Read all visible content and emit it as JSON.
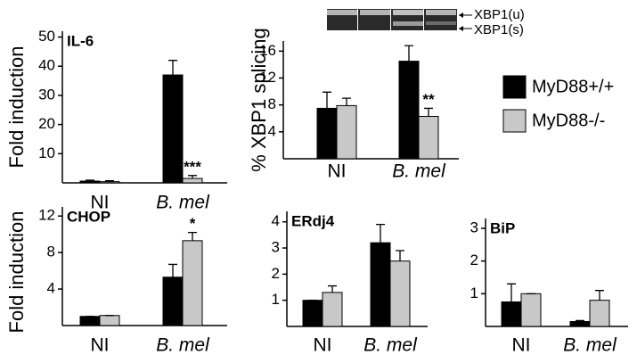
{
  "legend": [
    {
      "name": "MyD88+/+",
      "color": "#000000"
    },
    {
      "name": "MyD88-/-",
      "color": "#c8c8c8"
    }
  ],
  "gel": {
    "labels": [
      "XBP1(u)",
      "XBP1(s)"
    ]
  },
  "chart_data": [
    {
      "type": "bar",
      "title": "IL-6",
      "y_label": "Fold induction",
      "categories": [
        "NI",
        "B. mel"
      ],
      "series": [
        {
          "color": "#000000",
          "values": [
            0.6,
            37
          ],
          "errors": [
            0.3,
            5
          ]
        },
        {
          "color": "#c8c8c8",
          "values": [
            0.4,
            1.5
          ],
          "errors": [
            0.3,
            1
          ]
        }
      ],
      "annotations": [
        {
          "text": "***",
          "series": 1,
          "category": 1
        }
      ],
      "ylim": [
        0,
        52
      ],
      "yticks": [
        10,
        20,
        30,
        40,
        50
      ]
    },
    {
      "type": "bar",
      "y_label": "% XBP1 splicing",
      "categories": [
        "NI",
        "B. mel"
      ],
      "series": [
        {
          "color": "#000000",
          "values": [
            7.5,
            14.5
          ],
          "errors": [
            2.4,
            2.3
          ]
        },
        {
          "color": "#c8c8c8",
          "values": [
            7.9,
            6.3
          ],
          "errors": [
            1.1,
            1.2
          ]
        }
      ],
      "annotations": [
        {
          "text": "**",
          "series": 1,
          "category": 1
        }
      ],
      "ylim": [
        0,
        17.5
      ],
      "yticks": [
        4,
        8,
        12,
        16
      ]
    },
    {
      "type": "bar",
      "title": "CHOP",
      "y_label": "Fold induction",
      "categories": [
        "NI",
        "B. mel"
      ],
      "series": [
        {
          "color": "#000000",
          "values": [
            1,
            5.3
          ],
          "errors": [
            0,
            1.4
          ]
        },
        {
          "color": "#c8c8c8",
          "values": [
            1.1,
            9.3
          ],
          "errors": [
            0,
            0.9
          ]
        }
      ],
      "annotations": [
        {
          "text": "*",
          "series": 1,
          "category": 1
        }
      ],
      "ylim": [
        0,
        13
      ],
      "yticks": [
        4,
        8,
        12
      ]
    },
    {
      "type": "bar",
      "title": "ERdj4",
      "categories": [
        "NI",
        "B. mel"
      ],
      "series": [
        {
          "color": "#000000",
          "values": [
            1,
            3.2
          ],
          "errors": [
            0,
            0.7
          ]
        },
        {
          "color": "#c8c8c8",
          "values": [
            1.3,
            2.5
          ],
          "errors": [
            0.25,
            0.4
          ]
        }
      ],
      "ylim": [
        0,
        4.4
      ],
      "yticks": [
        1,
        2,
        3,
        4
      ]
    },
    {
      "type": "bar",
      "title": "BiP",
      "categories": [
        "NI",
        "B. mel"
      ],
      "series": [
        {
          "color": "#000000",
          "values": [
            0.75,
            0.15
          ],
          "errors": [
            0.55,
            0.03
          ]
        },
        {
          "color": "#c8c8c8",
          "values": [
            1.0,
            0.8
          ],
          "errors": [
            0,
            0.3
          ]
        }
      ],
      "ylim": [
        0,
        3.3
      ],
      "yticks": [
        1,
        2,
        3
      ]
    }
  ]
}
